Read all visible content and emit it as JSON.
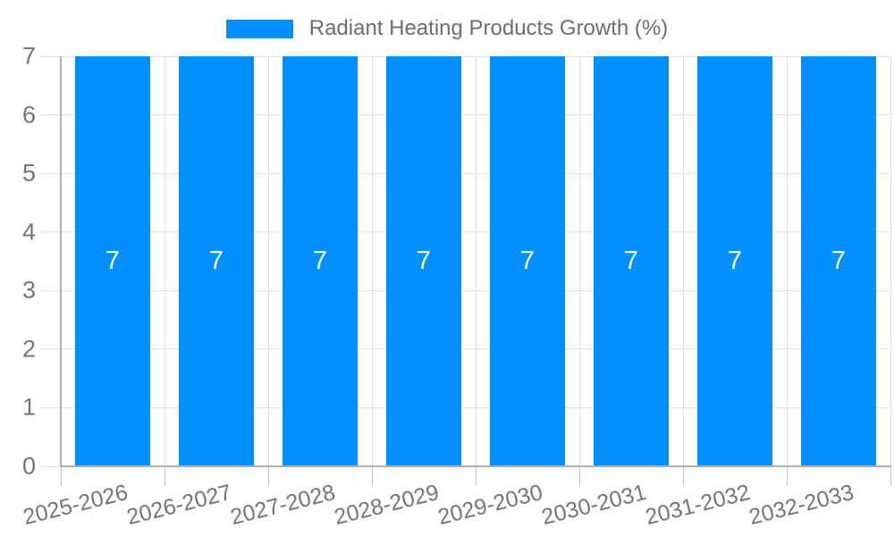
{
  "chart_data": {
    "type": "bar",
    "title": "Radiant Heating Products Growth (%)",
    "legend_position": "top",
    "categories": [
      "2025-2026",
      "2026-2027",
      "2027-2028",
      "2028-2029",
      "2029-2030",
      "2030-2031",
      "2031-2032",
      "2032-2033"
    ],
    "series": [
      {
        "name": "Radiant Heating Products Growth (%)",
        "values": [
          7,
          7,
          7,
          7,
          7,
          7,
          7,
          7
        ],
        "data_labels": [
          "7",
          "7",
          "7",
          "7",
          "7",
          "7",
          "7",
          "7"
        ]
      }
    ],
    "xlabel": "",
    "ylabel": "",
    "ylim": [
      0,
      7
    ],
    "y_ticks": [
      0,
      1,
      2,
      3,
      4,
      5,
      6,
      7
    ],
    "grid": true,
    "colors": {
      "bar": "#008ffb",
      "bar_label": "#ffffff",
      "axis_line": "#b1b1b1",
      "gridline": "#e2e2e2",
      "x_tick": "#c4c4c4",
      "y_tick": "#e2e2e2",
      "tick_label": "#757575",
      "legend_text": "#6d6d6d"
    }
  }
}
